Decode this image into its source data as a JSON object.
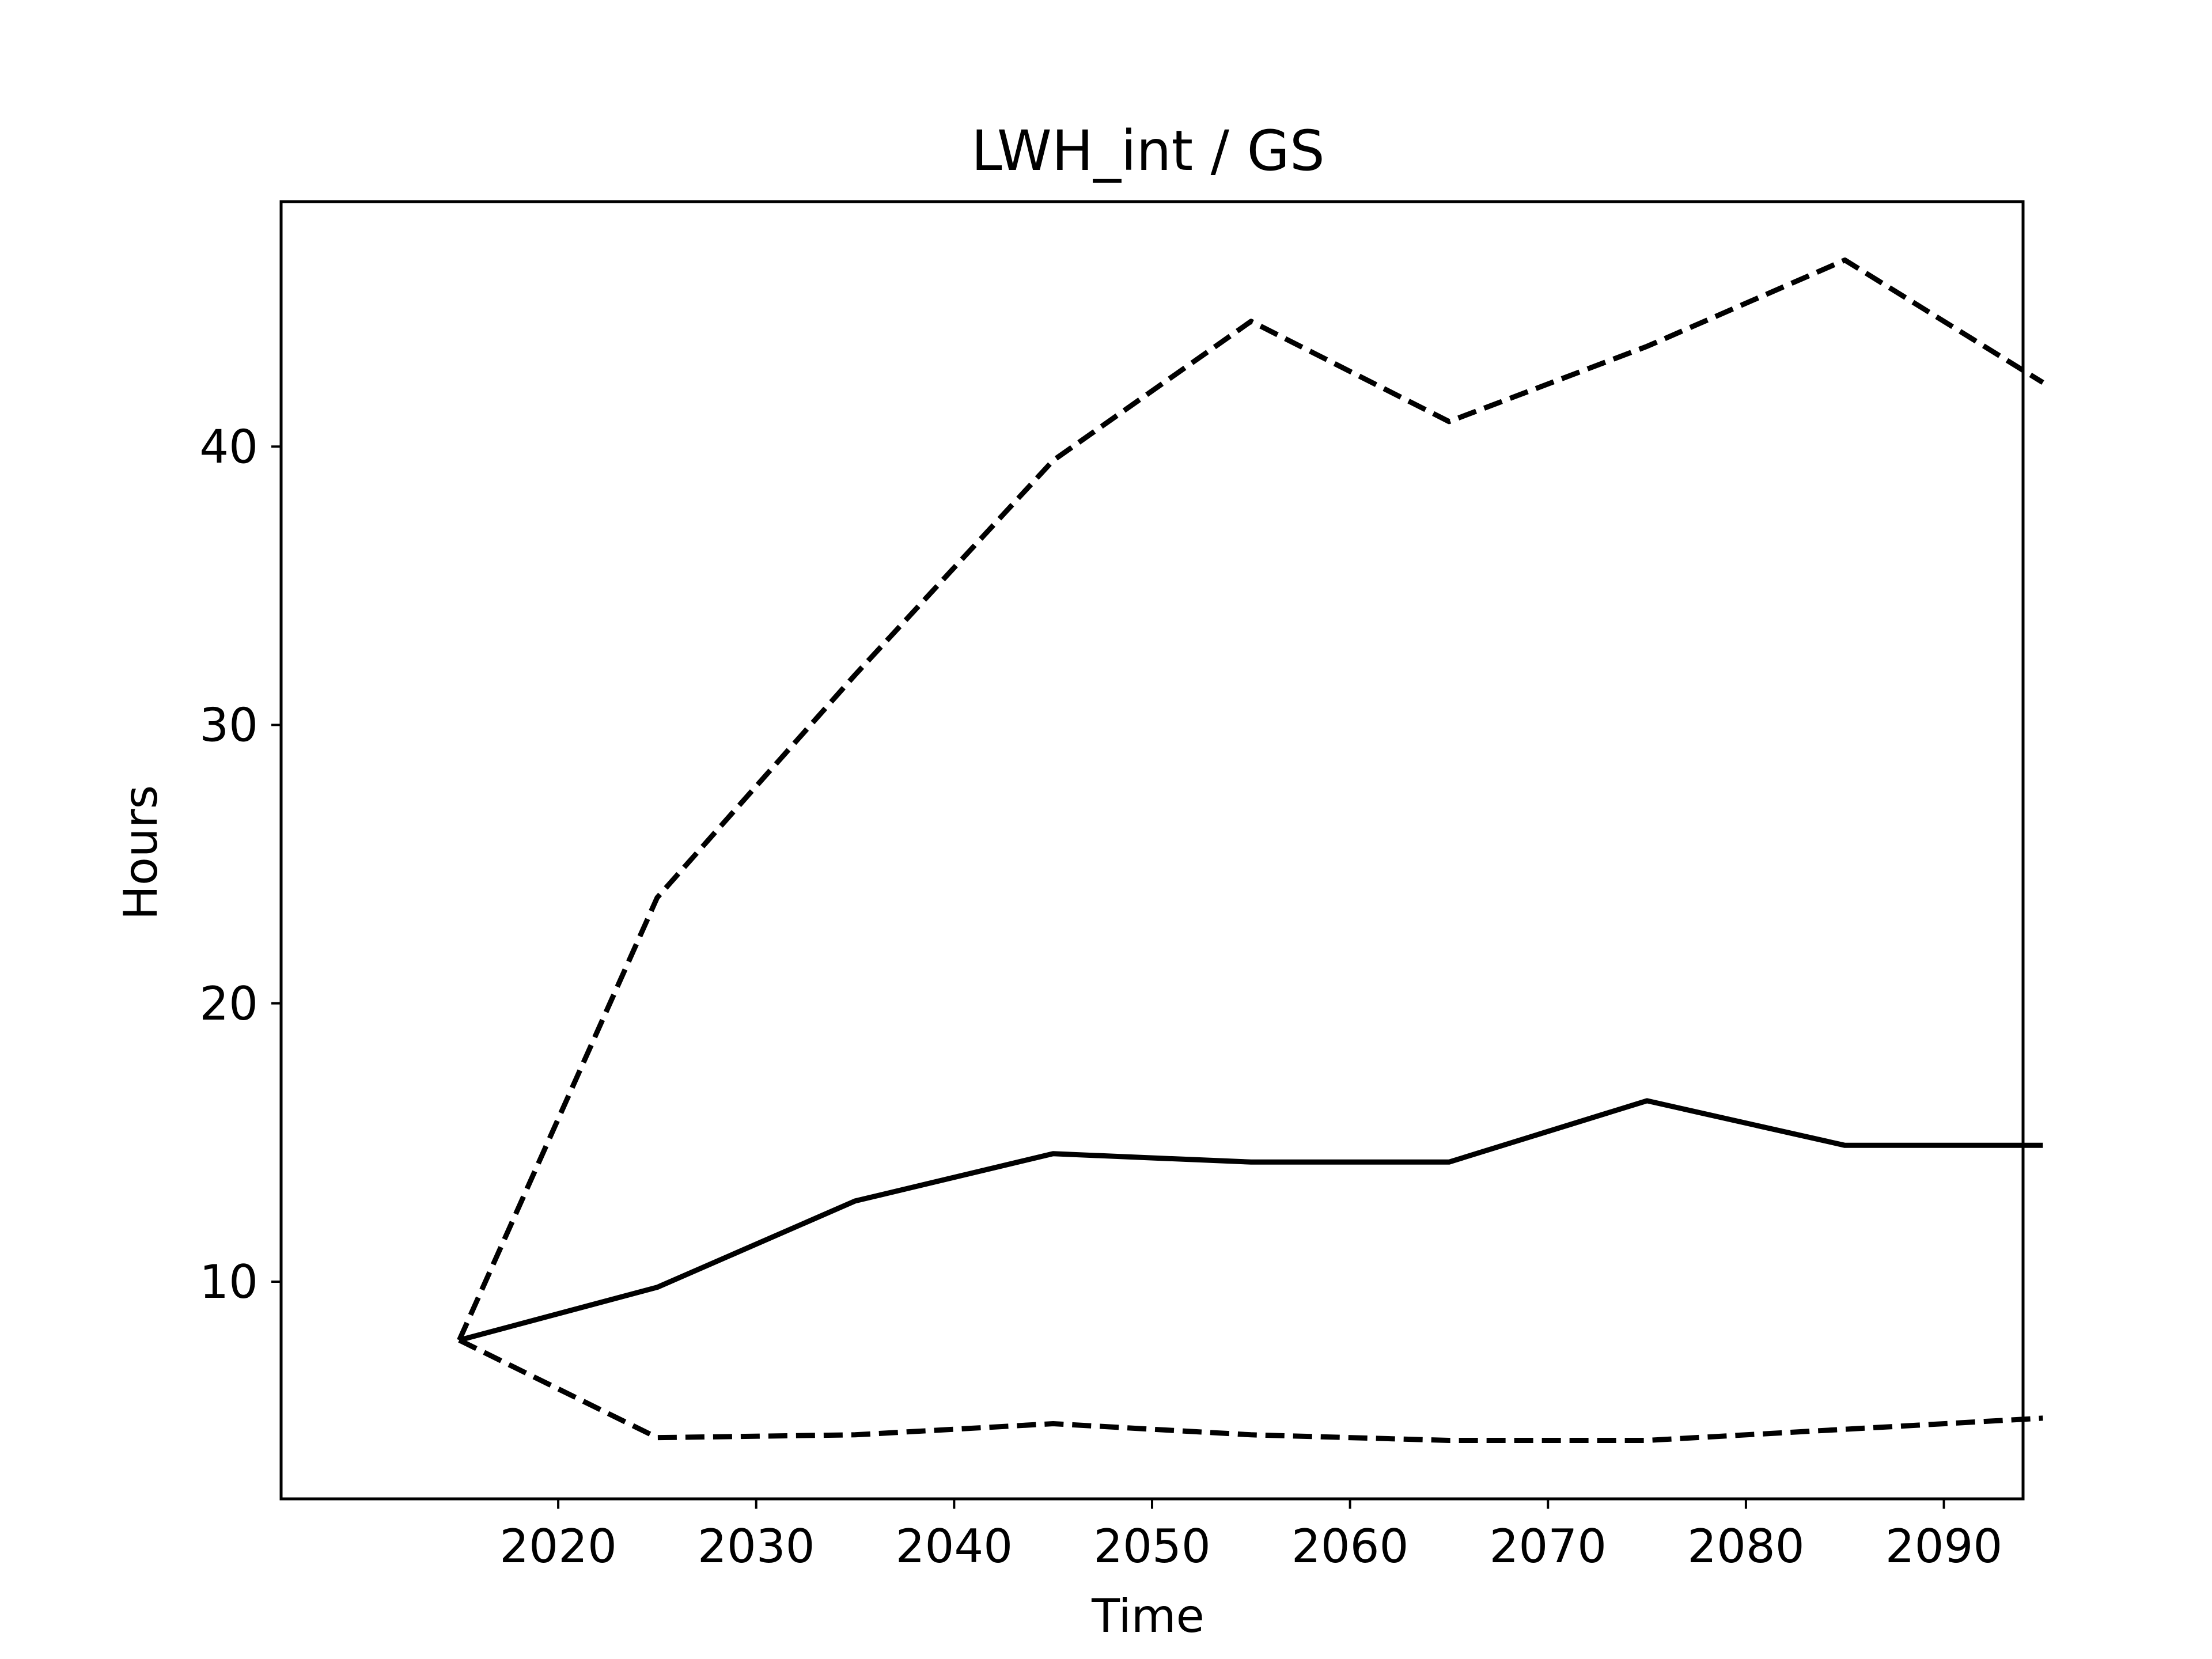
{
  "chart_data": {
    "type": "line",
    "title": "LWH_int / GS",
    "xlabel": "Time",
    "ylabel": "Hours",
    "x": [
      2015,
      2025,
      2035,
      2045,
      2055,
      2065,
      2075,
      2085,
      2095
    ],
    "xlim": [
      2006,
      2094
    ],
    "ylim": [
      2.2,
      48.8
    ],
    "xticks": [
      2020,
      2030,
      2040,
      2050,
      2060,
      2070,
      2080,
      2090
    ],
    "yticks": [
      10,
      20,
      30,
      40
    ],
    "xtick_labels": [
      "2020",
      "2030",
      "2040",
      "2050",
      "2060",
      "2070",
      "2080",
      "2090"
    ],
    "ytick_labels": [
      "10",
      "20",
      "30",
      "40"
    ],
    "grid": false,
    "legend": "none",
    "series": [
      {
        "style": "solid",
        "color": "#000000",
        "values": [
          7.9,
          9.8,
          12.9,
          14.6,
          14.3,
          14.3,
          16.5,
          14.9,
          14.9
        ]
      },
      {
        "style": "dashed",
        "color": "#000000",
        "values": [
          7.9,
          23.8,
          31.8,
          39.5,
          44.5,
          40.9,
          43.6,
          46.7,
          42.3
        ]
      },
      {
        "style": "dashed",
        "color": "#000000",
        "values": [
          7.9,
          4.4,
          4.5,
          4.9,
          4.5,
          4.3,
          4.3,
          4.7,
          5.1
        ]
      }
    ]
  }
}
